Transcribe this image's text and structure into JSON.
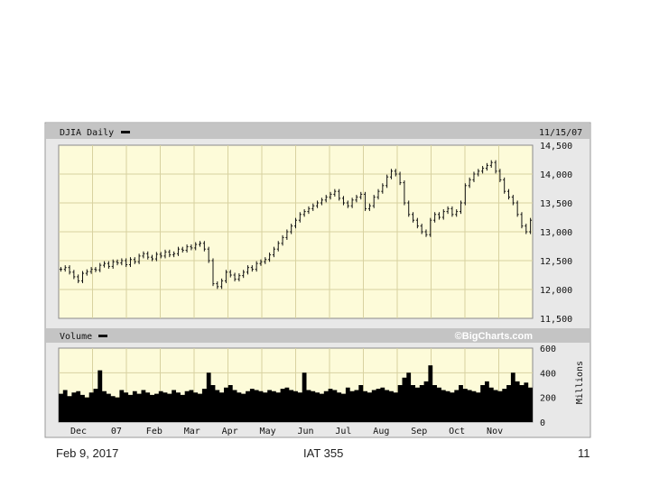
{
  "chart_data": [
    {
      "type": "bar",
      "title": "DJIA Daily",
      "date_label": "11/15/07",
      "ylim": [
        11500,
        14500
      ],
      "y_ticks": [
        {
          "value": 14500,
          "label": "14,500"
        },
        {
          "value": 14000,
          "label": "14,000"
        },
        {
          "value": 13500,
          "label": "13,500"
        },
        {
          "value": 13000,
          "label": "13,000"
        },
        {
          "value": 12500,
          "label": "12,500"
        },
        {
          "value": 12000,
          "label": "12,000"
        },
        {
          "value": 11500,
          "label": "11,500"
        }
      ],
      "grid": true,
      "background": "#fdfbd9",
      "series": [
        {
          "values": [
            12350,
            12380,
            12300,
            12220,
            12150,
            12280,
            12310,
            12350,
            12340,
            12420,
            12450,
            12400,
            12480,
            12460,
            12500,
            12430,
            12520,
            12480,
            12580,
            12620,
            12560,
            12530,
            12610,
            12580,
            12650,
            12600,
            12620,
            12700,
            12680,
            12740,
            12720,
            12780,
            12800,
            12700,
            12500,
            12100,
            12050,
            12150,
            12300,
            12250,
            12180,
            12240,
            12300,
            12380,
            12350,
            12450,
            12480,
            12520,
            12600,
            12700,
            12800,
            12900,
            13000,
            13100,
            13200,
            13300,
            13350,
            13400,
            13450,
            13500,
            13550,
            13600,
            13650,
            13700,
            13580,
            13500,
            13450,
            13550,
            13600,
            13650,
            13400,
            13450,
            13600,
            13700,
            13800,
            13950,
            14050,
            14000,
            13850,
            13500,
            13300,
            13200,
            13100,
            13000,
            12950,
            13200,
            13300,
            13250,
            13350,
            13400,
            13300,
            13350,
            13500,
            13800,
            13900,
            14000,
            14050,
            14100,
            14150,
            14200,
            14050,
            13900,
            13700,
            13600,
            13500,
            13300,
            13100,
            13000,
            13200
          ]
        }
      ]
    },
    {
      "type": "area",
      "title": "Volume",
      "watermark": "©BigCharts.com",
      "ylim": [
        0,
        600
      ],
      "y_ticks": [
        {
          "value": 600,
          "label": "600"
        },
        {
          "value": 400,
          "label": "400"
        },
        {
          "value": 200,
          "label": "200"
        },
        {
          "value": 0,
          "label": "0"
        }
      ],
      "y_unit": "Millions",
      "x_labels": [
        "Dec",
        "07",
        "Feb",
        "Mar",
        "Apr",
        "May",
        "Jun",
        "Jul",
        "Aug",
        "Sep",
        "Oct",
        "Nov"
      ],
      "grid": true,
      "background": "#fdfbd9",
      "series": [
        {
          "values": [
            230,
            260,
            210,
            240,
            250,
            220,
            200,
            240,
            270,
            420,
            250,
            230,
            210,
            200,
            260,
            240,
            220,
            250,
            230,
            260,
            240,
            220,
            230,
            250,
            240,
            230,
            260,
            240,
            220,
            250,
            260,
            240,
            230,
            270,
            400,
            300,
            260,
            240,
            280,
            300,
            260,
            240,
            230,
            250,
            270,
            260,
            250,
            240,
            260,
            250,
            240,
            270,
            280,
            260,
            250,
            240,
            400,
            260,
            250,
            240,
            230,
            250,
            270,
            260,
            240,
            230,
            280,
            250,
            260,
            300,
            250,
            240,
            260,
            270,
            280,
            260,
            250,
            240,
            300,
            360,
            400,
            300,
            280,
            300,
            330,
            460,
            300,
            280,
            260,
            250,
            240,
            260,
            300,
            270,
            260,
            250,
            240,
            300,
            330,
            280,
            260,
            250,
            270,
            300,
            400,
            330,
            300,
            320,
            280
          ]
        }
      ]
    }
  ],
  "footer": {
    "date": "Feb 9, 2017",
    "course": "IAT 355",
    "page": "11"
  }
}
